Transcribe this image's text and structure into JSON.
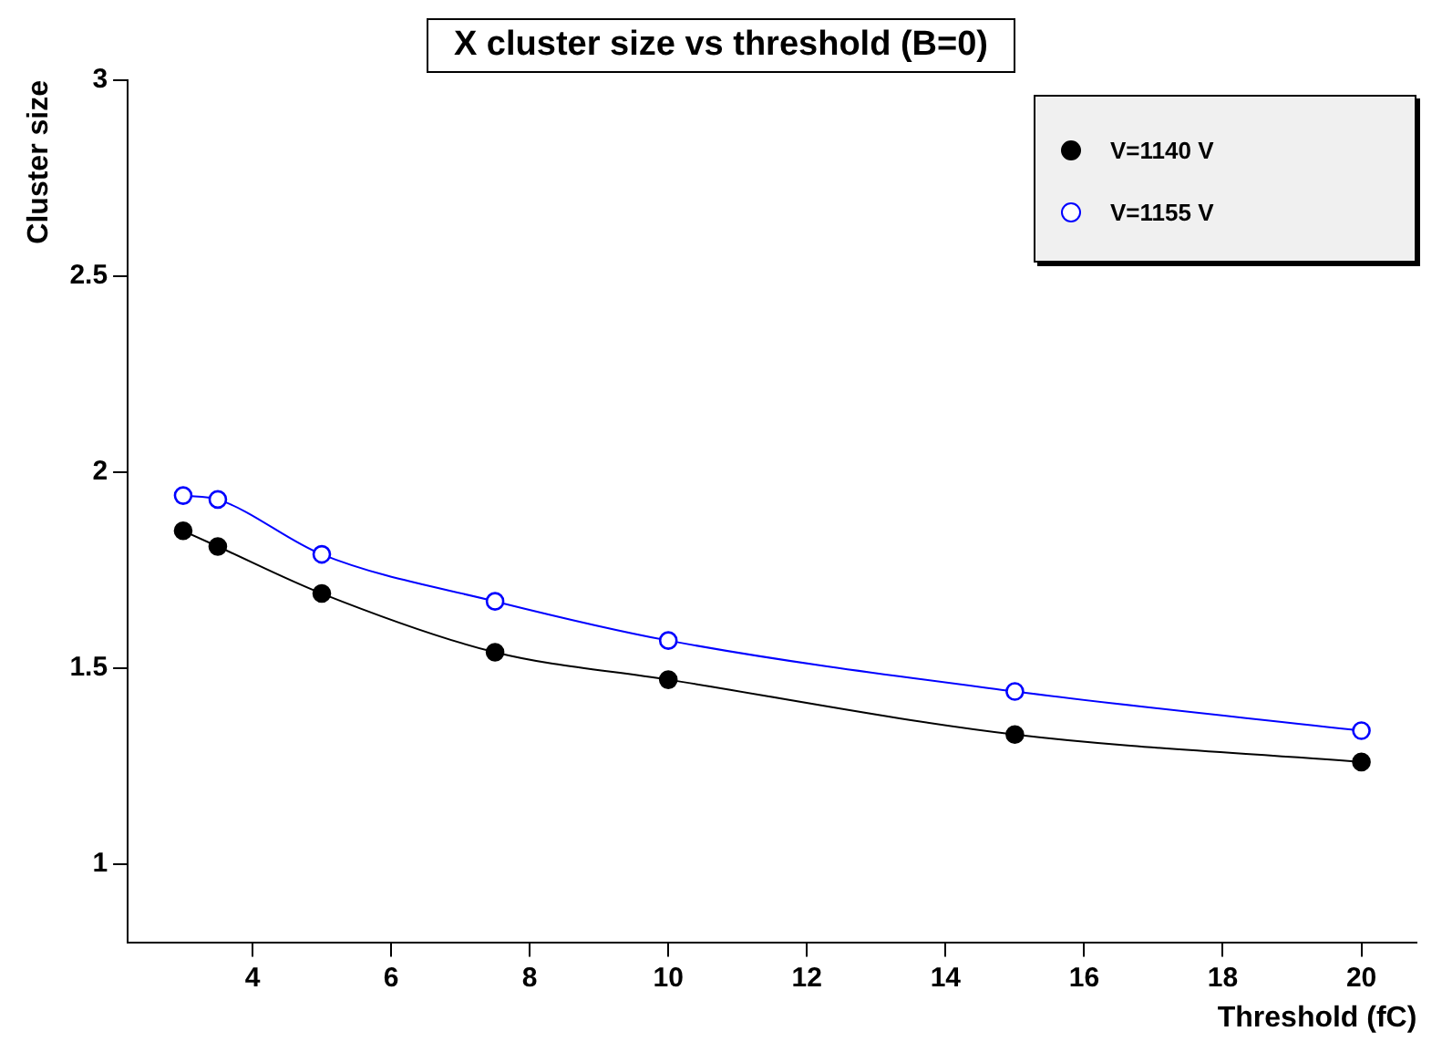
{
  "chart_data": {
    "type": "line",
    "title": "X cluster size vs threshold (B=0)",
    "xlabel": "Threshold (fC)",
    "ylabel": "Cluster size",
    "x": [
      3,
      3.5,
      5,
      7.5,
      10,
      15,
      20
    ],
    "series": [
      {
        "name": "V=1140 V",
        "color": "#000000",
        "values": [
          1.85,
          1.81,
          1.69,
          1.54,
          1.47,
          1.33,
          1.26
        ]
      },
      {
        "name": "V=1155 V",
        "color": "#0000ff",
        "values": [
          1.94,
          1.93,
          1.79,
          1.67,
          1.57,
          1.44,
          1.34
        ]
      }
    ],
    "xlim": [
      2.2,
      20.8
    ],
    "xticks": [
      4,
      6,
      8,
      10,
      12,
      14,
      16,
      18,
      20
    ],
    "ylim": [
      0.8,
      3
    ],
    "yticks": [
      1,
      1.5,
      2,
      2.5,
      3
    ],
    "legend": "top right",
    "marker": "circle",
    "grid": false
  }
}
